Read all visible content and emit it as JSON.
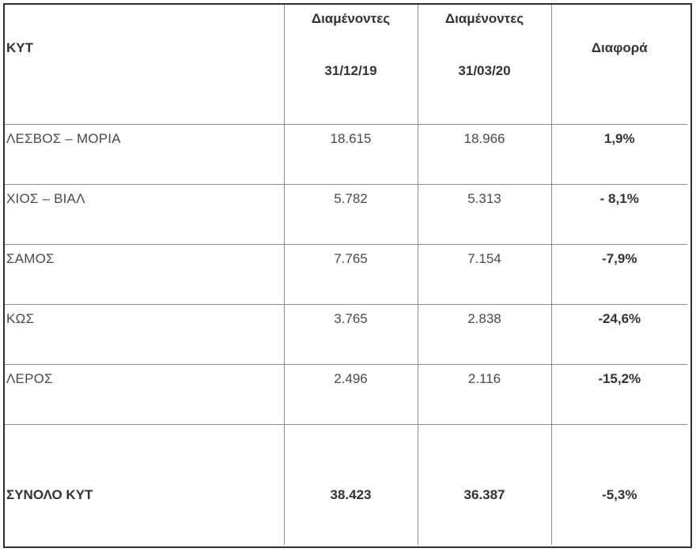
{
  "table": {
    "headers": {
      "name": "ΚΥΤ",
      "col1_line1": "Διαμένοντες",
      "col1_line2": "31/12/19",
      "col2_line1": "Διαμένοντες",
      "col2_line2": "31/03/20",
      "diff": "Διαφορά"
    },
    "rows": [
      {
        "name": "ΛΕΣΒΟΣ – ΜΟΡΙΑ",
        "v1": "18.615",
        "v2": "18.966",
        "diff": "1,9%"
      },
      {
        "name": "ΧΙΟΣ – ΒΙΑΛ",
        "v1": "5.782",
        "v2": "5.313",
        "diff": "- 8,1%"
      },
      {
        "name": "ΣΑΜΟΣ",
        "v1": "7.765",
        "v2": "7.154",
        "diff": "-7,9%"
      },
      {
        "name": "ΚΩΣ",
        "v1": "3.765",
        "v2": "2.838",
        "diff": "-24,6%"
      },
      {
        "name": "ΛΕΡΟΣ",
        "v1": "2.496",
        "v2": "2.116",
        "diff": "-15,2%"
      }
    ],
    "total": {
      "name": "ΣΥΝΟΛΟ ΚΥΤ",
      "v1": "38.423",
      "v2": "36.387",
      "diff": "-5,3%"
    }
  }
}
